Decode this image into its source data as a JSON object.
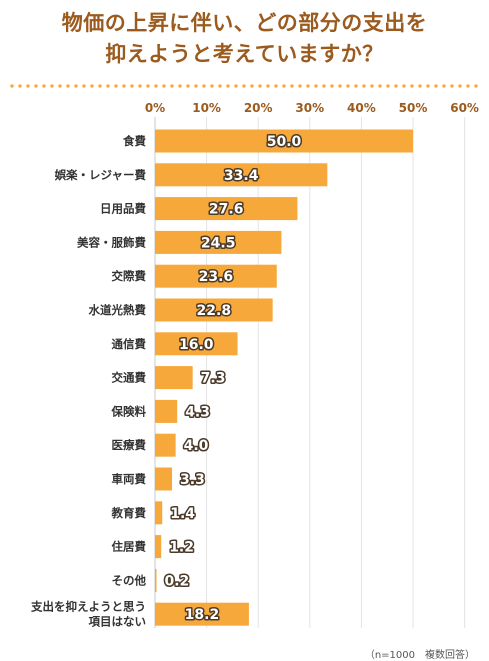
{
  "chart_data": {
    "type": "bar",
    "orientation": "horizontal",
    "title": [
      "物価の上昇に伴い、どの部分の支出を",
      "抑えようと考えていますか？"
    ],
    "note": "（n=1000　複数回答）",
    "tick_labels": [
      "0%",
      "10%",
      "20%",
      "30%",
      "40%",
      "50%",
      "60%"
    ],
    "xlim": [
      0,
      60
    ],
    "grid": true,
    "bar_color": "#f7a83a",
    "title_color": "#9b5a1e",
    "categories": [
      [
        "食費"
      ],
      [
        "娯楽・レジャー費"
      ],
      [
        "日用品費"
      ],
      [
        "美容・服飾費"
      ],
      [
        "交際費"
      ],
      [
        "水道光熱費"
      ],
      [
        "通信費"
      ],
      [
        "交通費"
      ],
      [
        "保険料"
      ],
      [
        "医療費"
      ],
      [
        "車両費"
      ],
      [
        "教育費"
      ],
      [
        "住居費"
      ],
      [
        "その他"
      ],
      [
        "支出を抑えようと思う",
        "項目はない"
      ]
    ],
    "values": [
      50.0,
      33.4,
      27.6,
      24.5,
      23.6,
      22.8,
      16.0,
      7.3,
      4.3,
      4.0,
      3.3,
      1.4,
      1.2,
      0.2,
      18.2
    ],
    "value_labels": [
      "50.0",
      "33.4",
      "27.6",
      "24.5",
      "23.6",
      "22.8",
      "16.0",
      "7.3",
      "4.3",
      "4.0",
      "3.3",
      "1.4",
      "1.2",
      "0.2",
      "18.2"
    ]
  }
}
